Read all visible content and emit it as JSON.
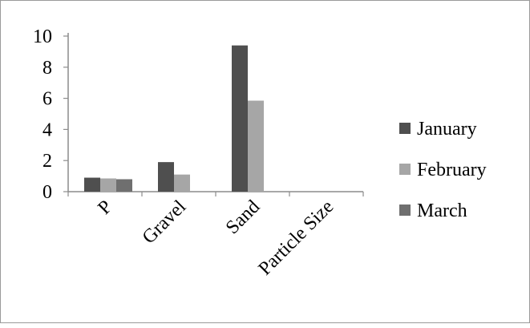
{
  "chart_data": {
    "type": "bar",
    "categories": [
      "P",
      "Gravel",
      "Sand",
      "Particle Size"
    ],
    "series": [
      {
        "name": "January",
        "values": [
          0.9,
          1.9,
          9.4,
          0
        ],
        "color": "#4f4f4f"
      },
      {
        "name": "February",
        "values": [
          0.85,
          1.1,
          5.85,
          0
        ],
        "color": "#a6a6a6"
      },
      {
        "name": "March",
        "values": [
          0.8,
          0,
          0,
          0
        ],
        "color": "#6f6f6f"
      }
    ],
    "yticks": [
      "0",
      "2",
      "4",
      "6",
      "8",
      "10"
    ],
    "ylim": [
      0,
      10
    ],
    "title": "",
    "xlabel": "",
    "ylabel": "",
    "grid": false,
    "legend_position": "right"
  }
}
